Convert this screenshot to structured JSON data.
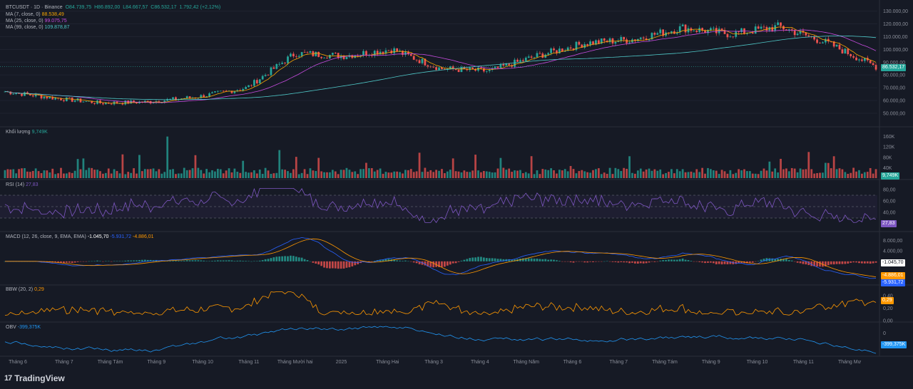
{
  "header": {
    "symbol": "BTCUSDT · 1D · Binance",
    "o": "O84.739,75",
    "h": "H86.892,00",
    "l": "L84.667,57",
    "c": "C86.532,17",
    "chg": "1.792,42 (+2,12%)"
  },
  "ma_legend": [
    {
      "label": "MA (7, close, 0)",
      "value": "88.538,49",
      "color": "#f7a600"
    },
    {
      "label": "MA (25, close, 0)",
      "value": "99.075,75",
      "color": "#c84ce0"
    },
    {
      "label": "MA (99, close, 0)",
      "value": "109.878,87",
      "color": "#4fc8c8"
    }
  ],
  "price_tag": "86.532,17",
  "volume": {
    "label": "Khối lượng",
    "value": "9,749K",
    "ticks": [
      "160K",
      "120K",
      "80K",
      "40K"
    ]
  },
  "rsi": {
    "label": "RSI (14)",
    "value": "27,83",
    "ticks": [
      "80,00",
      "60,00",
      "40,00",
      "20,00"
    ]
  },
  "macd": {
    "label": "MACD (12, 26, close, 9, EMA, EMA)",
    "v1": "-1.045,70",
    "v2": "-5.931,72",
    "v3": "-4.886,01",
    "ticks": [
      "8.000,00",
      "4.000,00",
      "0,00"
    ]
  },
  "bbw": {
    "label": "BBW (20, 2)",
    "value": "0,29",
    "ticks": [
      "0,40",
      "0,20",
      "0,00"
    ]
  },
  "obv": {
    "label": "OBV",
    "value": "-399,375K",
    "ticks": [
      "0"
    ]
  },
  "price_ticks": [
    "130.000,00",
    "120.000,00",
    "110.000,00",
    "100.000,00",
    "90.000,00",
    "80.000,00",
    "70.000,00",
    "60.000,00",
    "50.000,00"
  ],
  "brand": "TradingView",
  "colors": {
    "up": "#26a69a",
    "down": "#ef5350",
    "bg": "#161a25",
    "ma7": "#f7a600",
    "ma25": "#c84ce0",
    "ma99": "#4fc8c8",
    "rsi": "#7e57c2",
    "macd": "#2962ff",
    "signal": "#ff9800",
    "obv": "#2196f3"
  },
  "chart_data": {
    "type": "line",
    "title": "BTCUSDT · 1D · Binance",
    "x_labels": [
      "Tháng 6",
      "Tháng 7",
      "Tháng Tám",
      "Tháng 9",
      "Tháng 10",
      "Tháng 11",
      "Tháng Mười hai",
      "2025",
      "Tháng Hai",
      "Tháng 3",
      "Tháng 4",
      "Tháng Năm",
      "Tháng 6",
      "Tháng 7",
      "Tháng Tám",
      "Tháng 9",
      "Tháng 10",
      "Tháng 11",
      "Tháng Mư"
    ],
    "series": [
      {
        "name": "BTCUSDT",
        "x": [
          "Tháng 6",
          "Tháng 7",
          "Tháng Tám",
          "Tháng 9",
          "Tháng 10",
          "Tháng 11",
          "Tháng Mười hai",
          "2025",
          "Tháng Hai",
          "Tháng 3",
          "Tháng 4",
          "Tháng Năm",
          "Tháng 6",
          "Tháng 7",
          "Tháng Tám",
          "Tháng 9",
          "Tháng 10",
          "Tháng 11",
          "Tháng Mư"
        ],
        "values": [
          67000,
          62000,
          58000,
          59000,
          63000,
          70000,
          97000,
          95000,
          100000,
          85000,
          83000,
          95000,
          105000,
          108000,
          117000,
          112000,
          118000,
          105000,
          86532
        ]
      },
      {
        "name": "MA (99, close, 0)",
        "values": [
          65000,
          63000,
          61000,
          60000,
          61000,
          64000,
          75000,
          88000,
          96000,
          97000,
          93000,
          92000,
          96000,
          101000,
          106000,
          110000,
          112000,
          112000,
          109879
        ]
      },
      {
        "name": "MA (25, close, 0)",
        "values": [
          66000,
          62500,
          59000,
          59000,
          61000,
          67000,
          94000,
          96000,
          99000,
          88000,
          83000,
          92000,
          103000,
          107000,
          115000,
          112000,
          116000,
          108000,
          99076
        ]
      }
    ],
    "ylim": [
      50000,
      130000
    ]
  }
}
